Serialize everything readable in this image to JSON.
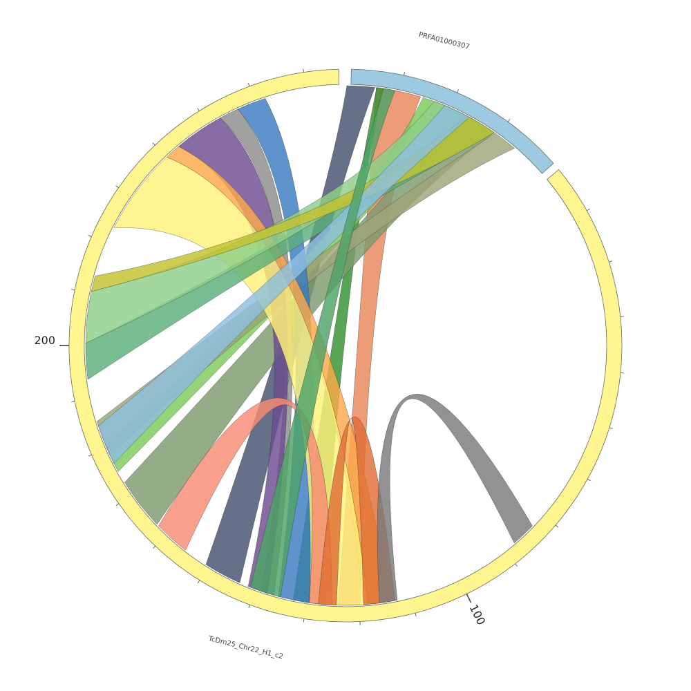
{
  "contigs": [
    {
      "name": "PRFA01000307",
      "color": "#9ECAE1",
      "label_text": "PRFA01000307",
      "major_ticks": [],
      "tick_count": 3
    },
    {
      "name": "TcDm25_Chr22_H1_c2",
      "color": "#FFF68F",
      "label_text": "TcDm25_Chr22_H1_c2",
      "major_ticks": [
        {
          "label": "100"
        },
        {
          "label": "200"
        }
      ],
      "tick_count": 30
    }
  ],
  "links": [
    {
      "id": "link-slate",
      "color": "#44506E"
    },
    {
      "id": "link-salmon-top",
      "color": "#E8885A"
    },
    {
      "id": "link-green",
      "color": "#33932F"
    },
    {
      "id": "link-lightgreen",
      "color": "#7DCB5A"
    },
    {
      "id": "link-olive",
      "color": "#7C9A6E"
    },
    {
      "id": "link-khaki",
      "color": "#9FA579"
    },
    {
      "id": "link-blue",
      "color": "#3B7BBF"
    },
    {
      "id": "link-gray",
      "color": "#8C8C8C"
    },
    {
      "id": "link-purple",
      "color": "#6D4D8F"
    },
    {
      "id": "link-orange",
      "color": "#FDA84A"
    },
    {
      "id": "link-yellow",
      "color": "#FFF27A"
    },
    {
      "id": "link-teal",
      "color": "#5BB07A"
    },
    {
      "id": "link-lightgreen2",
      "color": "#8ECF88"
    },
    {
      "id": "link-mustard",
      "color": "#C2C231"
    },
    {
      "id": "link-skyblue",
      "color": "#8CC0DE"
    },
    {
      "id": "link-coral",
      "color": "#F88B73"
    },
    {
      "id": "link-darkgreen",
      "color": "#4EA366"
    },
    {
      "id": "link-rust",
      "color": "#E06E34"
    },
    {
      "id": "link-darkgray",
      "color": "#7A7A7A"
    }
  ]
}
